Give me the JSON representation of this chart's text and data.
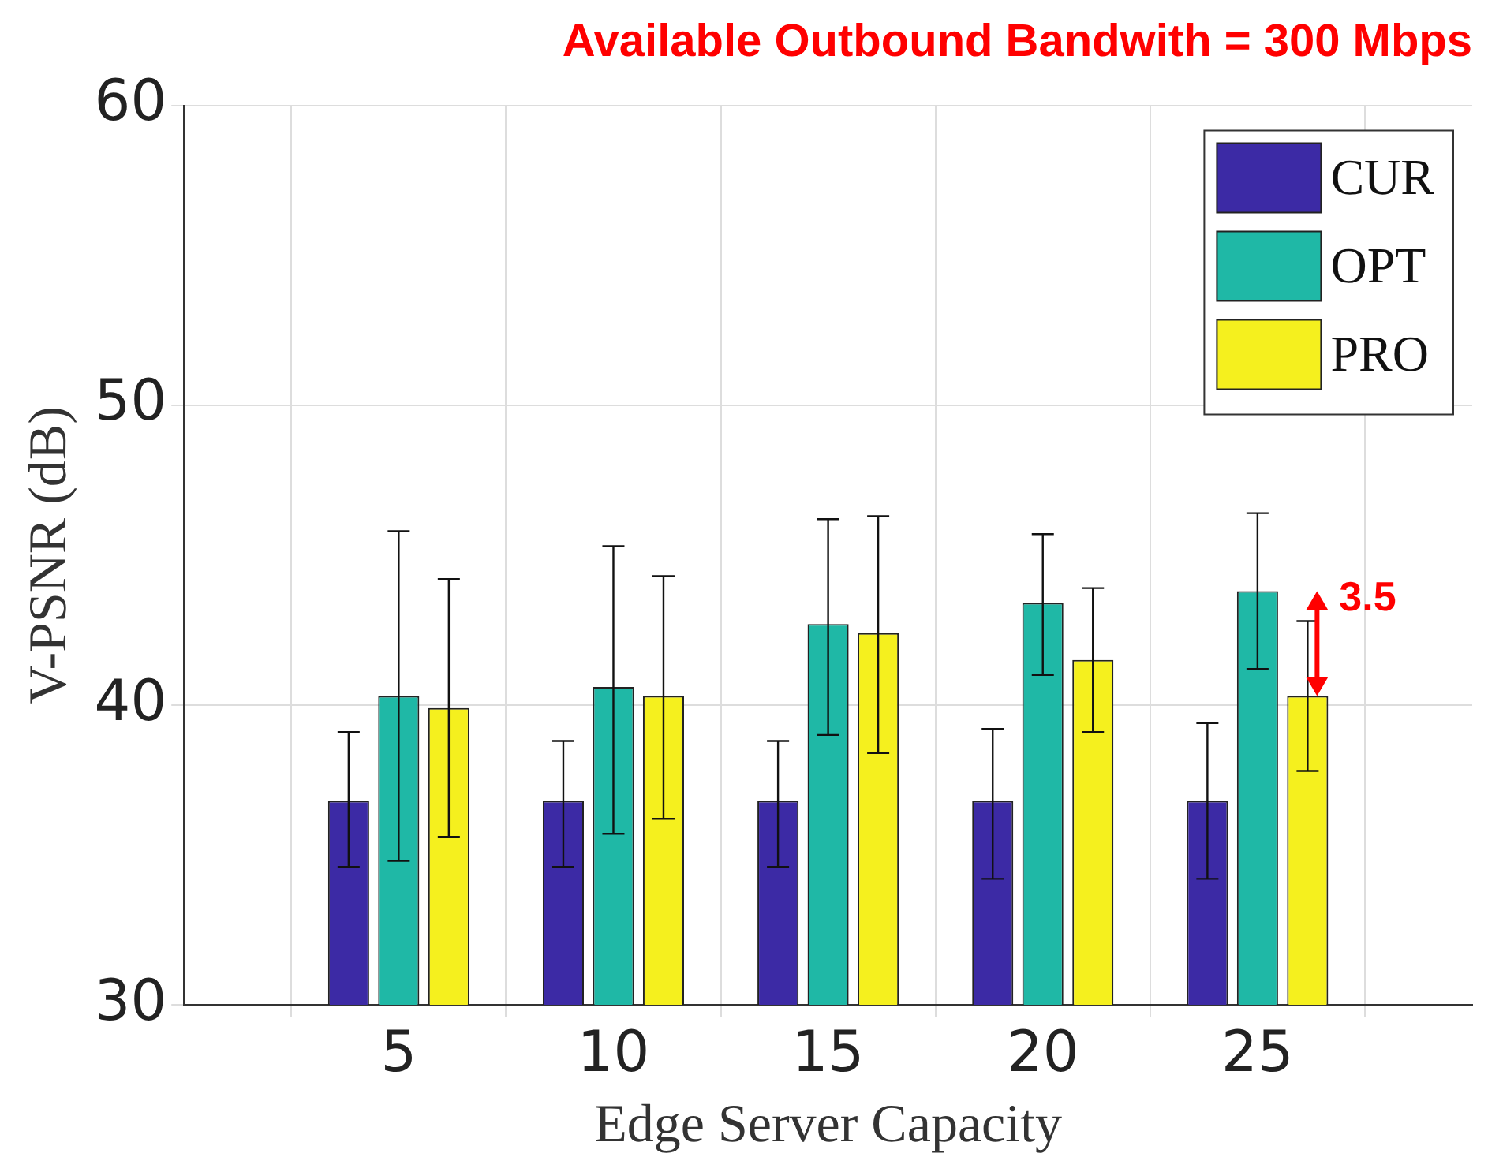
{
  "chart_data": {
    "type": "bar",
    "title": "Available Outbound Bandwith = 300 Mbps",
    "xlabel": "Edge Server Capacity",
    "ylabel": "V-PSNR (dB)",
    "x": [
      5,
      10,
      15,
      20,
      25
    ],
    "xlim": [
      0,
      30
    ],
    "xticks": [
      5,
      10,
      15,
      20,
      25
    ],
    "ylim": [
      30,
      60
    ],
    "yticks": [
      30,
      40,
      50,
      60
    ],
    "grid": true,
    "legend": "top right",
    "series": [
      {
        "name": "CUR",
        "color": "#3c2aa5",
        "values": [
          36.8,
          36.8,
          36.8,
          36.8,
          36.8
        ],
        "errors": [
          [
            34.6,
            39.1
          ],
          [
            34.6,
            38.8
          ],
          [
            34.6,
            38.8
          ],
          [
            34.2,
            39.2
          ],
          [
            34.2,
            39.4
          ]
        ]
      },
      {
        "name": "OPT",
        "color": "#1fb8a6",
        "values": [
          40.3,
          40.6,
          42.7,
          43.4,
          43.8
        ],
        "errors": [
          [
            34.8,
            45.8
          ],
          [
            35.7,
            45.3
          ],
          [
            39.0,
            46.2
          ],
          [
            41.0,
            45.7
          ],
          [
            41.2,
            46.4
          ]
        ]
      },
      {
        "name": "PRO",
        "color": "#f5f01e",
        "values": [
          39.9,
          40.3,
          42.4,
          41.5,
          40.3
        ],
        "errors": [
          [
            35.6,
            44.2
          ],
          [
            36.2,
            44.3
          ],
          [
            38.4,
            46.3
          ],
          [
            39.1,
            43.9
          ],
          [
            37.8,
            42.8
          ]
        ]
      }
    ],
    "annotations": [
      {
        "text": "3.5",
        "x": 25,
        "y": 42.05
      }
    ]
  }
}
